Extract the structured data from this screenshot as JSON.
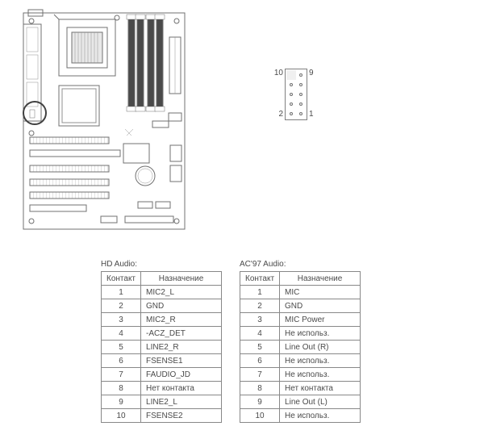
{
  "pinout": {
    "labels": {
      "tl": "10",
      "tr": "9",
      "bl": "2",
      "br": "1"
    },
    "blocked_pin": 8
  },
  "tables": {
    "hd": {
      "title": "HD Audio:",
      "headers": [
        "Контакт",
        "Назначение"
      ],
      "rows": [
        [
          "1",
          "MIC2_L"
        ],
        [
          "2",
          "GND"
        ],
        [
          "3",
          "MIC2_R"
        ],
        [
          "4",
          "-ACZ_DET"
        ],
        [
          "5",
          "LINE2_R"
        ],
        [
          "6",
          "FSENSE1"
        ],
        [
          "7",
          "FAUDIO_JD"
        ],
        [
          "8",
          "Нет контакта"
        ],
        [
          "9",
          "LINE2_L"
        ],
        [
          "10",
          "FSENSE2"
        ]
      ]
    },
    "ac97": {
      "title": "AC'97 Audio:",
      "headers": [
        "Контакт",
        "Назначение"
      ],
      "rows": [
        [
          "1",
          "MIC"
        ],
        [
          "2",
          "GND"
        ],
        [
          "3",
          "MIC Power"
        ],
        [
          "4",
          "Не использ."
        ],
        [
          "5",
          "Line Out (R)"
        ],
        [
          "6",
          "Не использ."
        ],
        [
          "7",
          "Не использ."
        ],
        [
          "8",
          "Нет контакта"
        ],
        [
          "9",
          "Line Out (L)"
        ],
        [
          "10",
          "Не использ."
        ]
      ]
    }
  },
  "colors": {
    "line": "#808080",
    "light_line": "#a0a0a0",
    "bg": "#ffffff"
  }
}
